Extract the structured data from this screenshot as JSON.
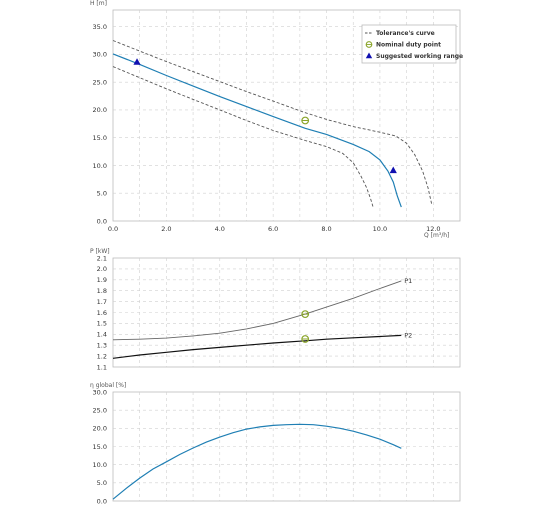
{
  "colors": {
    "curve": "#1f7fb4",
    "tolerance": "#555555",
    "duty_point": "#8aa52a",
    "working_range": "#1010b0",
    "grid": "#d0d0d0",
    "frame": "#bbbbbb",
    "p1": "#666666",
    "p2": "#111111"
  },
  "chart_data": [
    {
      "type": "line",
      "id": "head",
      "ylabel": "H [m]",
      "xlabel": "Q [m³/h]",
      "xlim": [
        0,
        13
      ],
      "ylim": [
        0,
        38
      ],
      "x_ticks": [
        "0.0",
        "2.0",
        "4.0",
        "6.0",
        "8.0",
        "10.0",
        "12.0"
      ],
      "y_ticks": [
        "0.0",
        "5.0",
        "10.0",
        "15.0",
        "20.0",
        "25.0",
        "30.0",
        "35.0"
      ],
      "grid": true,
      "legend_position": "top-right",
      "legend": [
        "Tolerance's curve",
        "Nominal duty point",
        "Suggested working range"
      ],
      "series": [
        {
          "role": "pump",
          "x": [
            0,
            1,
            2,
            3,
            4,
            5,
            6,
            7.2,
            8,
            9,
            9.6,
            10,
            10.3,
            10.5,
            10.65,
            10.8
          ],
          "y": [
            30.1,
            28.2,
            26.2,
            24.3,
            22.4,
            20.6,
            18.8,
            16.7,
            15.6,
            13.8,
            12.5,
            11.0,
            9.0,
            7.0,
            4.5,
            2.5
          ]
        },
        {
          "role": "tolerance-upper",
          "x": [
            0,
            1,
            2,
            3,
            4,
            5,
            6,
            7.2,
            8,
            9,
            10,
            10.6,
            11.0,
            11.3,
            11.6,
            11.8,
            11.95
          ],
          "y": [
            32.5,
            30.6,
            28.7,
            26.9,
            25.1,
            23.3,
            21.6,
            19.5,
            18.3,
            17.0,
            16.0,
            15.3,
            14.0,
            12.0,
            9.0,
            6.0,
            2.8
          ]
        },
        {
          "role": "tolerance-lower",
          "x": [
            0,
            1,
            2,
            3,
            4,
            5,
            6,
            7.2,
            8,
            8.6,
            9.0,
            9.3,
            9.5,
            9.65,
            9.75
          ],
          "y": [
            27.8,
            25.8,
            23.8,
            21.9,
            20.0,
            18.1,
            16.3,
            14.5,
            13.4,
            12.2,
            10.5,
            8.0,
            6.0,
            4.0,
            2.4
          ]
        }
      ],
      "duty_point": {
        "x": 7.2,
        "y": 18.1
      },
      "working_range": [
        {
          "x": 0.9,
          "y": 28.6
        },
        {
          "x": 10.5,
          "y": 9.1
        }
      ]
    },
    {
      "type": "line",
      "id": "power",
      "ylabel": "P [kW]",
      "xlim": [
        0,
        13
      ],
      "ylim": [
        1.1,
        2.1
      ],
      "y_ticks": [
        "1.1",
        "1.2",
        "1.3",
        "1.4",
        "1.5",
        "1.6",
        "1.7",
        "1.8",
        "1.9",
        "2.0",
        "2.1"
      ],
      "grid": true,
      "series": [
        {
          "name": "P1",
          "x": [
            0,
            1,
            2,
            3,
            4,
            5,
            6,
            7.2,
            8,
            9,
            10,
            10.8
          ],
          "y": [
            1.35,
            1.355,
            1.365,
            1.385,
            1.41,
            1.45,
            1.5,
            1.585,
            1.65,
            1.73,
            1.82,
            1.89
          ]
        },
        {
          "name": "P2",
          "x": [
            0,
            1,
            2,
            3,
            4,
            5,
            6,
            7.2,
            8,
            9,
            10,
            10.8
          ],
          "y": [
            1.18,
            1.21,
            1.235,
            1.26,
            1.28,
            1.3,
            1.32,
            1.34,
            1.355,
            1.368,
            1.38,
            1.39
          ]
        }
      ],
      "duty_points": [
        {
          "x": 7.2,
          "y": 1.585
        },
        {
          "x": 7.2,
          "y": 1.357
        }
      ]
    },
    {
      "type": "line",
      "id": "efficiency",
      "ylabel": "η global [%]",
      "xlim": [
        0,
        13
      ],
      "ylim": [
        0,
        30
      ],
      "y_ticks": [
        "0.0",
        "5.0",
        "10.0",
        "15.0",
        "20.0",
        "25.0",
        "30.0"
      ],
      "grid": true,
      "series": [
        {
          "role": "efficiency",
          "x": [
            0,
            0.5,
            1,
            1.5,
            2,
            2.5,
            3,
            3.5,
            4,
            4.5,
            5,
            5.5,
            6,
            6.5,
            7,
            7.5,
            8,
            8.5,
            9,
            9.5,
            10,
            10.5,
            10.8
          ],
          "y": [
            0.5,
            3.5,
            6.3,
            8.8,
            10.8,
            12.8,
            14.6,
            16.2,
            17.6,
            18.8,
            19.8,
            20.4,
            20.8,
            21.0,
            21.1,
            21.0,
            20.6,
            20.0,
            19.2,
            18.2,
            17.0,
            15.5,
            14.5
          ]
        }
      ]
    }
  ]
}
